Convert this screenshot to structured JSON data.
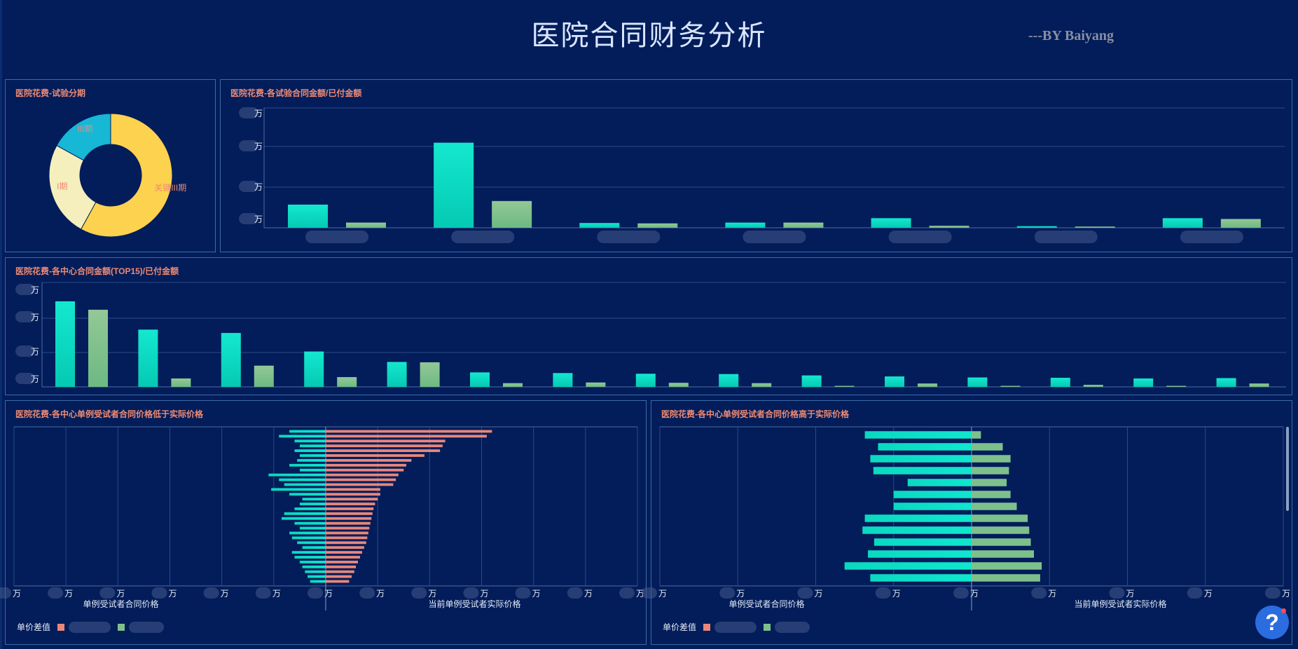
{
  "page": {
    "title": "医院合同财务分析",
    "byline": "---BY Baiyang"
  },
  "colors": {
    "background": "#021d5a",
    "panel_border": "#3d6aa8",
    "title_accent": "#f08a72",
    "contract_bar": "#0ad9c0",
    "paid_bar": "#7ec08c",
    "diff_bar": "#e9877a",
    "grid": "#2a4a86"
  },
  "panels": {
    "phase": {
      "title": "医院花费-试验分期"
    },
    "trial": {
      "title": "医院花费-各试验合同金额/已付金额"
    },
    "center": {
      "title": "医院花费-各中心合同金额(TOP15)/已付金额"
    },
    "lower": {
      "title": "医院花费-各中心单例受试者合同价格低于实际价格",
      "left_axis_title": "单例受试者合同价格",
      "right_axis_title": "当前单例受试者实际价格",
      "legend_label": "单价差值"
    },
    "higher": {
      "title": "医院花费-各中心单例受试者合同价格高于实际价格",
      "left_axis_title": "单例受试者合同价格",
      "right_axis_title": "当前单例受试者实际价格",
      "legend_label": "单价差值"
    }
  },
  "help": {
    "label": "?",
    "icon": "help-icon"
  },
  "chart_data": [
    {
      "type": "pie",
      "title": "医院花费-试验分期",
      "donut": true,
      "slices": [
        {
          "label": "关键III期",
          "value": 58,
          "color": "#fdd24e"
        },
        {
          "label": "I期",
          "value": 25,
          "color": "#f4efbc"
        },
        {
          "label": "III期",
          "value": 17,
          "color": "#17b7d6"
        }
      ]
    },
    {
      "type": "bar",
      "title": "医院花费-各试验合同金额/已付金额",
      "ylim": [
        0,
        30
      ],
      "ytick_labels": [
        "万",
        "万",
        "万",
        "万"
      ],
      "series": [
        {
          "name": "",
          "values": [
            5.8,
            21.3,
            1.2,
            1.3,
            2.4,
            0.4,
            2.4
          ]
        },
        {
          "name": "",
          "values": [
            1.3,
            6.7,
            1.1,
            1.3,
            0.5,
            0.3,
            2.2
          ]
        }
      ]
    },
    {
      "type": "bar",
      "title": "医院花费-各中心合同金额(TOP15)/已付金额",
      "ylim": [
        0,
        31
      ],
      "ytick_labels": [
        "万",
        "万",
        "万",
        "万"
      ],
      "series": [
        {
          "name": "",
          "values": [
            25.4,
            17.0,
            16.0,
            10.5,
            7.4,
            4.3,
            4.1,
            3.9,
            3.8,
            3.4,
            3.1,
            2.8,
            2.7,
            2.5,
            2.6
          ]
        },
        {
          "name": "",
          "values": [
            22.9,
            2.5,
            6.3,
            2.9,
            7.3,
            1.1,
            1.3,
            1.2,
            1.1,
            0.3,
            1.0,
            0.3,
            0.6,
            0.3,
            1.0
          ]
        }
      ]
    },
    {
      "type": "bar",
      "orientation": "horizontal",
      "title": "医院花费-各中心单例受试者合同价格低于实际价格",
      "xlabel_left": "单例受试者合同价格",
      "xlabel_right": "当前单例受试者实际价格",
      "xlim": [
        -6,
        6
      ],
      "xtick_labels": [
        "万",
        "万",
        "万",
        "万",
        "万",
        "万",
        "万",
        "万",
        "万",
        "万",
        "万",
        "万",
        "万"
      ],
      "series": [
        {
          "name": "",
          "values": [
            -0.7,
            -0.9,
            -0.6,
            -0.5,
            -0.6,
            -0.5,
            -0.55,
            -0.7,
            -0.5,
            -1.1,
            -0.9,
            -0.8,
            -1.05,
            -0.7,
            -0.45,
            -0.5,
            -0.6,
            -0.8,
            -0.85,
            -0.6,
            -0.5,
            -0.7,
            -0.65,
            -0.55,
            -0.45,
            -0.65,
            -0.6,
            -0.5,
            -0.45,
            -0.4,
            -0.35,
            -0.3
          ]
        },
        {
          "name": "",
          "values": [
            3.2,
            3.1,
            2.3,
            2.25,
            2.2,
            1.9,
            1.65,
            1.55,
            1.5,
            1.4,
            1.35,
            1.3,
            1.05,
            1.05,
            1.0,
            0.95,
            0.92,
            0.9,
            0.88,
            0.86,
            0.84,
            0.82,
            0.8,
            0.78,
            0.74,
            0.7,
            0.66,
            0.62,
            0.58,
            0.55,
            0.5,
            0.45
          ]
        }
      ]
    },
    {
      "type": "bar",
      "orientation": "horizontal",
      "title": "医院花费-各中心单例受试者合同价格高于实际价格",
      "xlabel_left": "单例受试者合同价格",
      "xlabel_right": "当前单例受试者实际价格",
      "xlim": [
        -4,
        4
      ],
      "xtick_labels": [
        "万",
        "万",
        "万",
        "万",
        "万",
        "万",
        "万",
        "万",
        "万"
      ],
      "series": [
        {
          "name": "",
          "values": [
            -1.37,
            -1.2,
            -1.3,
            -1.26,
            -0.82,
            -1.0,
            -1.0,
            -1.37,
            -1.4,
            -1.25,
            -1.33,
            -1.63,
            -1.3
          ]
        },
        {
          "name": "",
          "values": [
            0.12,
            0.4,
            0.5,
            0.48,
            0.45,
            0.5,
            0.58,
            0.72,
            0.74,
            0.76,
            0.8,
            0.9,
            0.88
          ]
        }
      ]
    }
  ]
}
